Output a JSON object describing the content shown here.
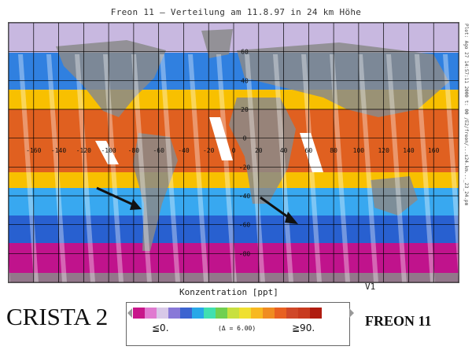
{
  "title": "Freon 11 – Verteilung am 11.8.97 in 24 km Höhe",
  "side_note": "Plot: Ago 27 14:57:11 2000 t: 00 /E2/freon/...s24.km..._23_24.pm",
  "v1_label": "V1",
  "concentration_label": "Konzentration [ppt]",
  "crista_label": "CRISTA 2",
  "freon_label": "FREON 11",
  "scale": {
    "min_label": "≦0.",
    "max_label": "≧90.",
    "step_label": "(Δ = 6.00)",
    "colors": [
      "#c8168a",
      "#e07ad0",
      "#d8c8e8",
      "#8878d8",
      "#3c64d0",
      "#28a8e8",
      "#40e0b0",
      "#70d050",
      "#c8e040",
      "#f0e030",
      "#f8b820",
      "#f08c20",
      "#e86020",
      "#d04828",
      "#c83a1e",
      "#b01c10"
    ]
  },
  "map": {
    "lon_labels": [
      "-160",
      "-140",
      "-120",
      "-100",
      "-80",
      "-60",
      "-40",
      "-20",
      "0",
      "20",
      "40",
      "60",
      "80",
      "100",
      "120",
      "140",
      "160"
    ],
    "lat_labels": [
      "60",
      "40",
      "20",
      "0",
      "-20",
      "-40",
      "-60",
      "-80"
    ]
  },
  "band_colors": {
    "polar_north": "#c8b8e0",
    "north_mid": "#3080e0",
    "north_sub": "#f8c000",
    "tropics": "#e06020",
    "south_sub": "#38a8f0",
    "south_mid": "#2860d0",
    "polar_south": "#c0138c",
    "land": "#8a8a8a"
  }
}
